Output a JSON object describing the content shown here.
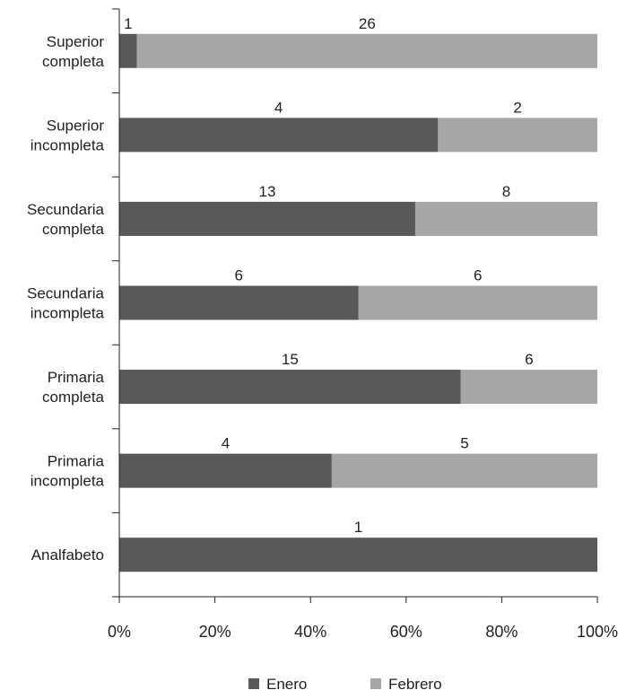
{
  "chart_data": {
    "type": "bar",
    "orientation": "horizontal",
    "stacked": "percent",
    "categories": [
      [
        "Superior",
        "completa"
      ],
      [
        "Superior",
        "incompleta"
      ],
      [
        "Secundaria",
        "completa"
      ],
      [
        "Secundaria",
        "incompleta"
      ],
      [
        "Primaria",
        "completa"
      ],
      [
        "Primaria",
        "incompleta"
      ],
      [
        "Analfabeto"
      ]
    ],
    "series": [
      {
        "name": "Enero",
        "color": "#595959",
        "values": [
          1,
          4,
          13,
          6,
          15,
          4,
          1
        ]
      },
      {
        "name": "Febrero",
        "color": "#a6a6a6",
        "values": [
          26,
          2,
          8,
          6,
          6,
          5,
          0
        ]
      }
    ],
    "data_labels": [
      [
        "1",
        "4",
        "13",
        "6",
        "15",
        "4",
        "1"
      ],
      [
        "26",
        "2",
        "8",
        "6",
        "6",
        "5",
        ""
      ]
    ],
    "x_ticks": [
      "0%",
      "20%",
      "40%",
      "60%",
      "80%",
      "100%"
    ],
    "xlim": [
      0,
      100
    ],
    "grid": false,
    "legend": {
      "position": "bottom",
      "entries": [
        "Enero",
        "Febrero"
      ]
    }
  }
}
